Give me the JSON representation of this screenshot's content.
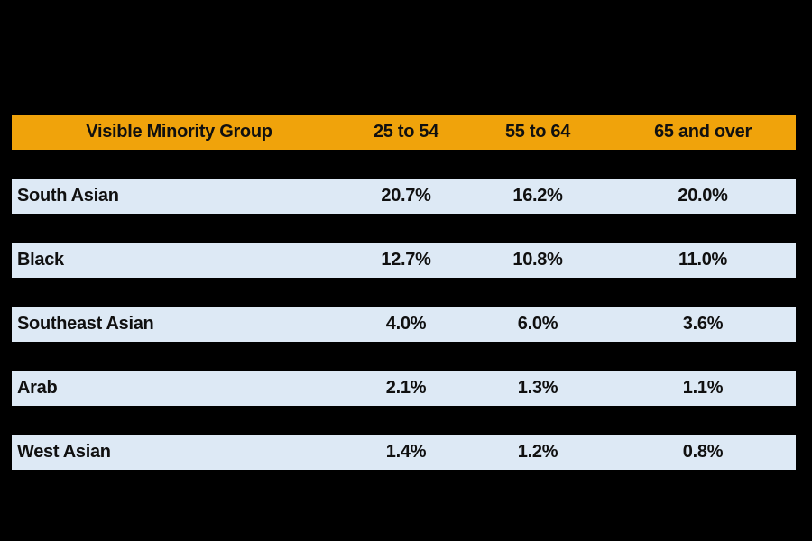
{
  "page": {
    "background_color": "#000000"
  },
  "table": {
    "header": {
      "bg_color": "#F0A30B",
      "text_color": "#101010",
      "col_group": "Visible Minority Group",
      "col_25_54": "25 to 54",
      "col_55_64": "55 to 64",
      "col_65_over": "65 and over"
    },
    "row_bg_color": "#DDE9F5",
    "rows": [
      {
        "group": "South Asian",
        "age_25_54": "20.7%",
        "age_55_64": "16.2%",
        "age_65_over": "20.0%"
      },
      {
        "group": "Black",
        "age_25_54": "12.7%",
        "age_55_64": "10.8%",
        "age_65_over": "11.0%"
      },
      {
        "group": "Southeast Asian",
        "age_25_54": "4.0%",
        "age_55_64": "6.0%",
        "age_65_over": "3.6%"
      },
      {
        "group": "Arab",
        "age_25_54": "2.1%",
        "age_55_64": "1.3%",
        "age_65_over": "1.1%"
      },
      {
        "group": "West Asian",
        "age_25_54": "1.4%",
        "age_55_64": "1.2%",
        "age_65_over": "0.8%"
      }
    ]
  },
  "chart_data": {
    "type": "table",
    "title": "",
    "columns": [
      "Visible Minority Group",
      "25 to 54",
      "55 to 64",
      "65 and over"
    ],
    "value_unit": "percent",
    "rows": [
      {
        "group": "South Asian",
        "values": [
          20.7,
          16.2,
          20.0
        ]
      },
      {
        "group": "Black",
        "values": [
          12.7,
          10.8,
          11.0
        ]
      },
      {
        "group": "Southeast Asian",
        "values": [
          4.0,
          6.0,
          3.6
        ]
      },
      {
        "group": "Arab",
        "values": [
          2.1,
          1.3,
          1.1
        ]
      },
      {
        "group": "West Asian",
        "values": [
          1.4,
          1.2,
          0.8
        ]
      }
    ]
  }
}
